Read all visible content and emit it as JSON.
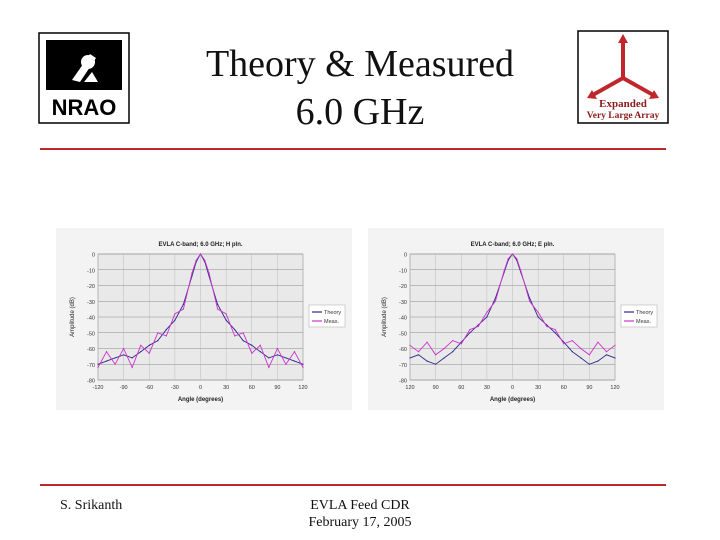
{
  "slide": {
    "title_line1": "Theory & Measured",
    "title_line2": "6.0 GHz"
  },
  "logos": {
    "nrao_text": "NRAO",
    "evla_line1": "Expanded",
    "evla_line2": "Very Large Array",
    "accent": "#c0272d"
  },
  "footer": {
    "author": "S. Srikanth",
    "event": "EVLA Feed CDR",
    "date": "February 17, 2005"
  },
  "chart_data": [
    {
      "type": "line",
      "title": "EVLA C-band; 6.0 GHz; H pln.",
      "xlabel": "Angle (degrees)",
      "ylabel": "Amplitude (dB)",
      "xlim": [
        -120,
        120
      ],
      "ylim": [
        -80,
        0
      ],
      "xticks": [
        "-120",
        "-90",
        "-60",
        "-30",
        "0",
        "30",
        "60",
        "90",
        "120"
      ],
      "yticks": [
        "0",
        "-10",
        "-20",
        "-30",
        "-40",
        "-50",
        "-60",
        "-70",
        "-80"
      ],
      "grid": true,
      "legend": "right",
      "series": [
        {
          "name": "Theory",
          "color": "#2a2a8a",
          "x": [
            -120,
            -110,
            -100,
            -90,
            -80,
            -70,
            -60,
            -50,
            -40,
            -30,
            -20,
            -10,
            -5,
            0,
            5,
            10,
            20,
            30,
            40,
            50,
            60,
            70,
            80,
            90,
            100,
            110,
            120
          ],
          "y": [
            -70,
            -68,
            -66,
            -64,
            -66,
            -62,
            -58,
            -55,
            -48,
            -42,
            -32,
            -14,
            -5,
            0,
            -5,
            -14,
            -32,
            -42,
            -48,
            -55,
            -58,
            -62,
            -66,
            -64,
            -66,
            -68,
            -70
          ]
        },
        {
          "name": "Meas.",
          "color": "#cc33cc",
          "x": [
            -120,
            -110,
            -100,
            -90,
            -80,
            -70,
            -60,
            -50,
            -40,
            -30,
            -20,
            -10,
            -5,
            0,
            5,
            10,
            20,
            30,
            40,
            50,
            60,
            70,
            80,
            90,
            100,
            110,
            120
          ],
          "y": [
            -72,
            -62,
            -70,
            -60,
            -72,
            -58,
            -63,
            -50,
            -52,
            -38,
            -35,
            -12,
            -4,
            0,
            -4,
            -12,
            -35,
            -38,
            -52,
            -50,
            -63,
            -58,
            -72,
            -60,
            -70,
            -62,
            -72
          ]
        }
      ]
    },
    {
      "type": "line",
      "title": "EVLA C-band; 6.0 GHz; E pln.",
      "xlabel": "Angle (degrees)",
      "ylabel": "Amplitude (dB)",
      "xlim": [
        -120,
        120
      ],
      "ylim": [
        -80,
        0
      ],
      "xticks": [
        "120",
        "90",
        "60",
        "30",
        "0",
        "30",
        "60",
        "90",
        "120"
      ],
      "yticks": [
        "0",
        "-10",
        "-20",
        "-30",
        "-40",
        "-50",
        "-60",
        "-70",
        "-80"
      ],
      "grid": true,
      "legend": "right",
      "series": [
        {
          "name": "Theory",
          "color": "#2a2a8a",
          "x": [
            -120,
            -110,
            -100,
            -90,
            -80,
            -70,
            -60,
            -50,
            -40,
            -30,
            -20,
            -10,
            -5,
            0,
            5,
            10,
            20,
            30,
            40,
            50,
            60,
            70,
            80,
            90,
            100,
            110,
            120
          ],
          "y": [
            -66,
            -64,
            -68,
            -70,
            -66,
            -62,
            -56,
            -50,
            -45,
            -40,
            -28,
            -12,
            -4,
            0,
            -4,
            -12,
            -28,
            -40,
            -45,
            -50,
            -56,
            -62,
            -66,
            -70,
            -68,
            -64,
            -66
          ]
        },
        {
          "name": "Meas.",
          "color": "#cc33cc",
          "x": [
            -120,
            -110,
            -100,
            -90,
            -80,
            -70,
            -60,
            -50,
            -40,
            -30,
            -20,
            -10,
            -5,
            0,
            5,
            10,
            20,
            30,
            40,
            50,
            60,
            70,
            80,
            90,
            100,
            110,
            120
          ],
          "y": [
            -58,
            -62,
            -56,
            -64,
            -60,
            -55,
            -57,
            -48,
            -46,
            -37,
            -30,
            -11,
            -3,
            0,
            -3,
            -11,
            -30,
            -37,
            -46,
            -48,
            -57,
            -55,
            -60,
            -64,
            -56,
            -62,
            -58
          ]
        }
      ]
    }
  ]
}
